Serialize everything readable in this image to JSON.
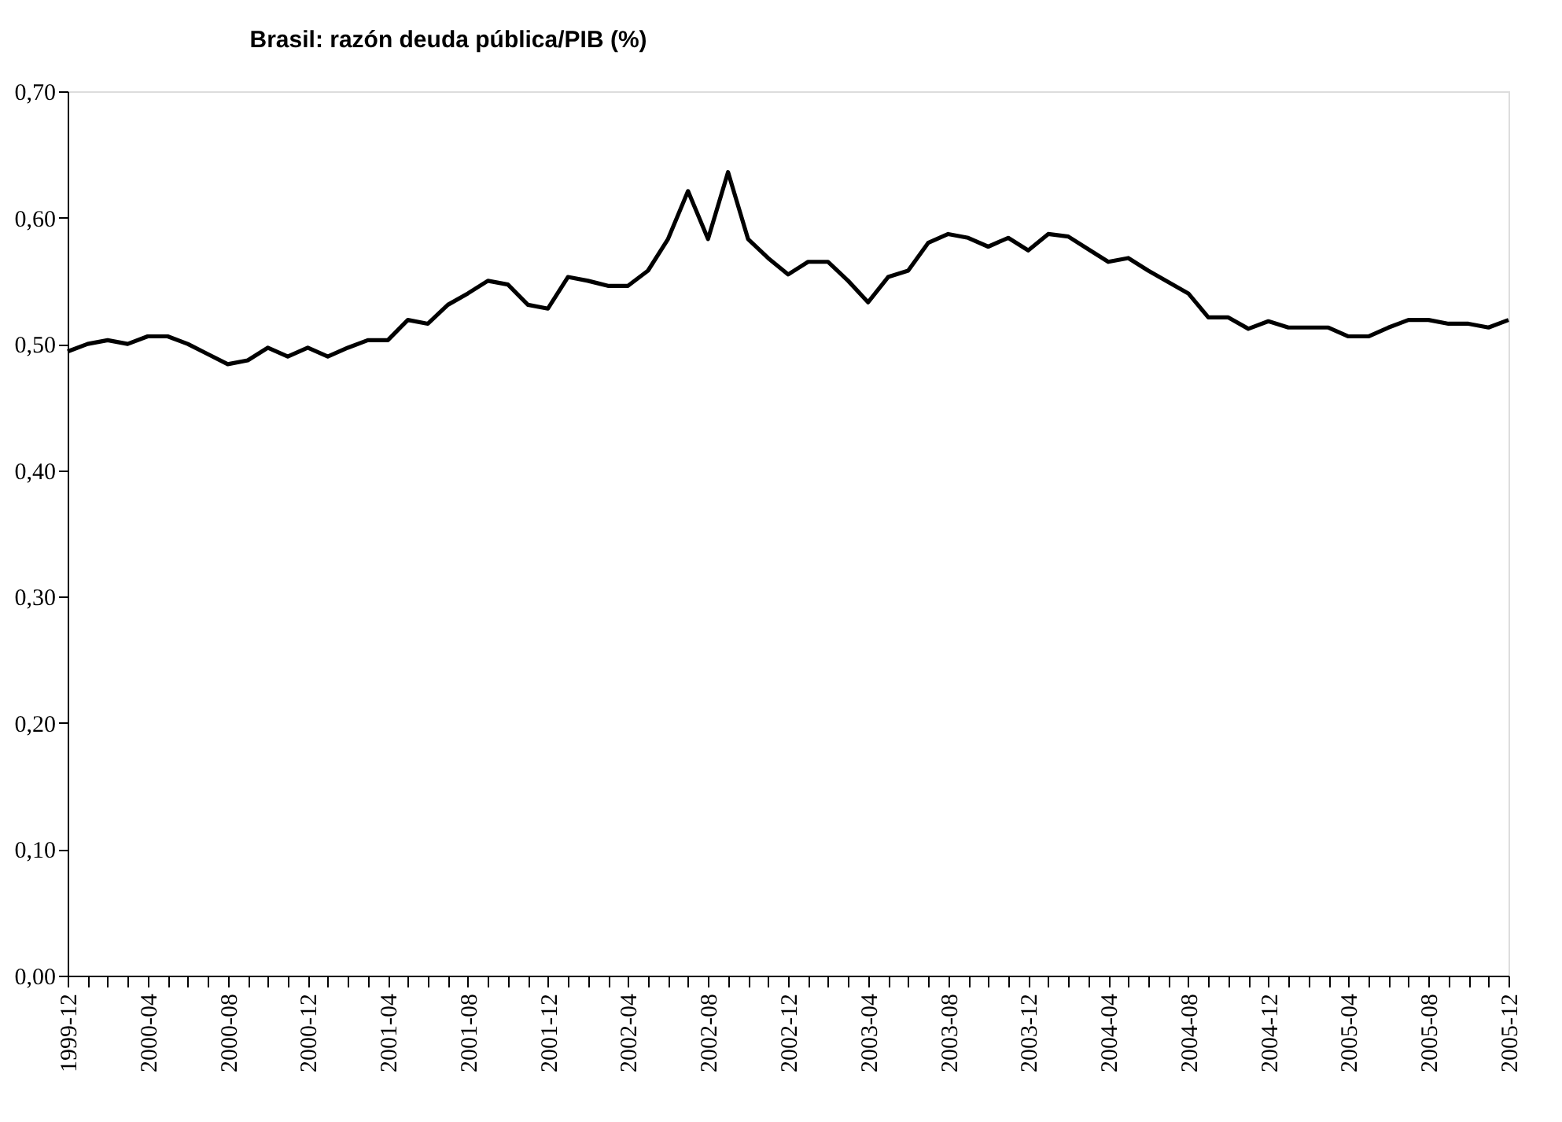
{
  "chart_data": {
    "type": "line",
    "title": "Brasil: razón deuda pública/PIB (%)",
    "categories": [
      "1999-12",
      null,
      null,
      null,
      "2000-04",
      null,
      null,
      null,
      "2000-08",
      null,
      null,
      null,
      "2000-12",
      null,
      null,
      null,
      "2001-04",
      null,
      null,
      null,
      "2001-08",
      null,
      null,
      null,
      "2001-12",
      null,
      null,
      null,
      "2002-04",
      null,
      null,
      null,
      "2002-08",
      null,
      null,
      null,
      "2002-12",
      null,
      null,
      null,
      "2003-04",
      null,
      null,
      null,
      "2003-08",
      null,
      null,
      null,
      "2003-12",
      null,
      null,
      null,
      "2004-04",
      null,
      null,
      null,
      "2004-08",
      null,
      null,
      null,
      "2004-12",
      null,
      null,
      null,
      "2005-04",
      null,
      null,
      null,
      "2005-08",
      null,
      null,
      null,
      "2005-12"
    ],
    "series": [
      {
        "color": "#000000",
        "values": [
          0.494,
          0.5,
          0.503,
          0.5,
          0.506,
          0.506,
          0.5,
          0.492,
          0.484,
          0.487,
          0.497,
          0.49,
          0.497,
          0.49,
          0.497,
          0.503,
          0.503,
          0.519,
          0.516,
          0.531,
          0.54,
          0.55,
          0.547,
          0.531,
          0.528,
          0.553,
          0.55,
          0.546,
          0.546,
          0.558,
          0.583,
          0.621,
          0.583,
          0.636,
          0.583,
          0.568,
          0.555,
          0.565,
          0.565,
          0.55,
          0.533,
          0.553,
          0.558,
          0.58,
          0.587,
          0.584,
          0.577,
          0.584,
          0.574,
          0.587,
          0.585,
          0.575,
          0.565,
          0.568,
          0.558,
          0.549,
          0.54,
          0.521,
          0.521,
          0.512,
          0.518,
          0.513,
          0.513,
          0.513,
          0.506,
          0.506,
          0.513,
          0.519,
          0.519,
          0.516,
          0.516,
          0.513,
          0.519
        ]
      }
    ],
    "ylim": [
      0,
      0.7
    ],
    "yticks": [
      {
        "value": 0,
        "label": "0,00"
      },
      {
        "value": 0.1,
        "label": "0,10"
      },
      {
        "value": 0.2,
        "label": "0,20"
      },
      {
        "value": 0.3,
        "label": "0,30"
      },
      {
        "value": 0.4,
        "label": "0,40"
      },
      {
        "value": 0.5,
        "label": "0,50"
      },
      {
        "value": 0.6,
        "label": "0,60"
      },
      {
        "value": 0.7,
        "label": "0,70"
      }
    ],
    "grid": false,
    "legend": false,
    "marker": "none",
    "line_style": "solid"
  }
}
